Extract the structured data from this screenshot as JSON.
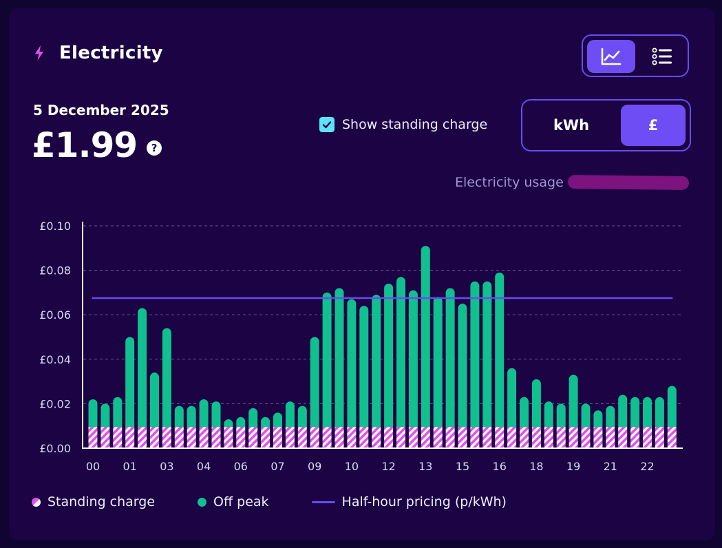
{
  "header": {
    "title": "Electricity",
    "date": "5 December 2025",
    "amount": "£1.99",
    "help": "?"
  },
  "controls": {
    "view_options": [
      "graph",
      "list"
    ],
    "view_selected": "graph",
    "standing_charge_label": "Show standing charge",
    "standing_charge_checked": true,
    "units": [
      "kWh",
      "£"
    ],
    "unit_selected": "£",
    "usage_label": "Electricity usage"
  },
  "colors": {
    "background": "#1b0344",
    "accent": "#6f4df5",
    "off_peak": "#10c08e",
    "standing_charge": "#e44ef0",
    "pricing_line": "#6a4cf2",
    "checkbox": "#5de3f7"
  },
  "legend": {
    "standing_charge": "Standing charge",
    "off_peak": "Off peak",
    "pricing": "Half-hour pricing (p/kWh)"
  },
  "chart_data": {
    "type": "bar",
    "stacked": true,
    "ylim": [
      0,
      0.1
    ],
    "y_ticks": [
      {
        "value": 0,
        "label": "£0.00"
      },
      {
        "value": 0.02,
        "label": "£0.02"
      },
      {
        "value": 0.04,
        "label": "£0.04"
      },
      {
        "value": 0.06,
        "label": "£0.06"
      },
      {
        "value": 0.08,
        "label": "£0.08"
      },
      {
        "value": 0.1,
        "label": "£0.10"
      }
    ],
    "x_ticks": [
      {
        "index": 0,
        "label": "00"
      },
      {
        "index": 3,
        "label": "01"
      },
      {
        "index": 6,
        "label": "03"
      },
      {
        "index": 9,
        "label": "04"
      },
      {
        "index": 12,
        "label": "06"
      },
      {
        "index": 15,
        "label": "07"
      },
      {
        "index": 18,
        "label": "09"
      },
      {
        "index": 21,
        "label": "10"
      },
      {
        "index": 24,
        "label": "12"
      },
      {
        "index": 27,
        "label": "13"
      },
      {
        "index": 30,
        "label": "15"
      },
      {
        "index": 33,
        "label": "16"
      },
      {
        "index": 36,
        "label": "18"
      },
      {
        "index": 39,
        "label": "19"
      },
      {
        "index": 42,
        "label": "21"
      },
      {
        "index": 45,
        "label": "22"
      }
    ],
    "standing_charge_per_slot": 0.0095,
    "series": [
      {
        "name": "Off peak",
        "totals": [
          0.022,
          0.02,
          0.023,
          0.05,
          0.063,
          0.034,
          0.054,
          0.019,
          0.019,
          0.022,
          0.021,
          0.013,
          0.014,
          0.018,
          0.014,
          0.016,
          0.021,
          0.019,
          0.05,
          0.07,
          0.072,
          0.067,
          0.064,
          0.069,
          0.074,
          0.077,
          0.071,
          0.091,
          0.068,
          0.072,
          0.065,
          0.075,
          0.075,
          0.079,
          0.036,
          0.023,
          0.031,
          0.021,
          0.02,
          0.033,
          0.02,
          0.017,
          0.019,
          0.024,
          0.023,
          0.023,
          0.023,
          0.028
        ]
      }
    ],
    "pricing_line_value": 0.0675
  }
}
